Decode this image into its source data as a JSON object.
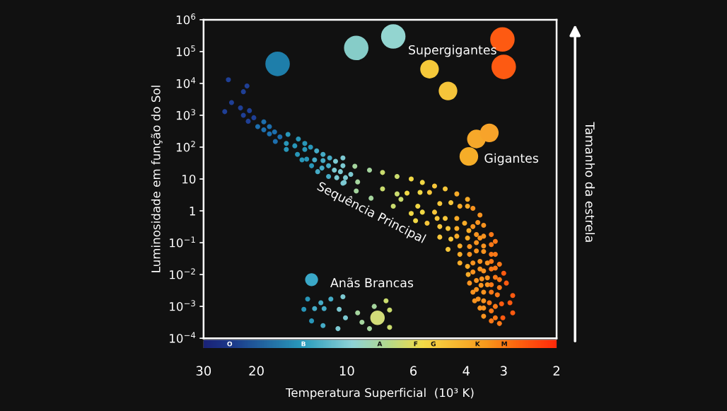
{
  "chart_data": {
    "type": "scatter",
    "xlabel": "Temperatura Superficial  (10³ K)",
    "ylabel": "Luminosidade em função do Sol",
    "log": "xy",
    "xlim": [
      30,
      2
    ],
    "ylim": [
      0.0001,
      1000000
    ],
    "xticks": [
      30,
      20,
      10,
      6,
      4,
      3,
      2
    ],
    "yticks": [
      {
        "value": 0.0001,
        "label": "10$^{−4}$"
      },
      {
        "value": 0.001,
        "label": "10$^{−3}$"
      },
      {
        "value": 0.01,
        "label": "10$^{−2}$"
      },
      {
        "value": 0.1,
        "label": "10$^{−1}$"
      },
      {
        "value": 1,
        "label": "1"
      },
      {
        "value": 10,
        "label": "10"
      },
      {
        "value": 100,
        "label": "10$^{2}$"
      },
      {
        "value": 1000,
        "label": "10$^{3}$"
      },
      {
        "value": 10000,
        "label": "10$^{4}$"
      },
      {
        "value": 100000,
        "label": "10$^{5}$"
      },
      {
        "value": 1000000,
        "label": "10$^{6}$"
      }
    ],
    "series": [
      {
        "colors": [
          "#1f3f95",
          "#1f3f95",
          "#1f3f95",
          "#1f3f95",
          "#1f3f95",
          "#1f3f95",
          "#1f3f95",
          "#1f3f95",
          "#1f3f95",
          "#1f3f95",
          "#1d6fae",
          "#1d6fae",
          "#1d6fae",
          "#1d6fae",
          "#1d6fae",
          "#1d6fae",
          "#1d6fae",
          "#2896b8",
          "#1d6fae",
          "#2896b8",
          "#2896b8",
          "#2896b8",
          "#2896b8",
          "#2896b8",
          "#2896b8",
          "#2896b8",
          "#45abc6",
          "#2896b8",
          "#2896b8",
          "#2896b8",
          "#45abc6",
          "#45abc6",
          "#45abc6",
          "#7cc9d2",
          "#7cc9d2",
          "#2896b8",
          "#45abc6",
          "#45abc6",
          "#7cc9d2",
          "#7cc9d2",
          "#45abc6",
          "#45abc6",
          "#7cc9d2",
          "#45abc6",
          "#7cc9d2",
          "#7cc9d2",
          "#a5d59e",
          "#7cc9d2",
          "#a5d59e",
          "#7cc9d2",
          "#a5d59e",
          "#cadc6e",
          "#cadc6e",
          "#f1d845",
          "#f1d845",
          "#f6c63a",
          "#f6c63a",
          "#f7ab28",
          "#f7ab28",
          "#f8931f",
          "#f8931f",
          "#f8931f",
          "#fb7817",
          "#fb7817",
          "#fb7817",
          "#fd5a10",
          "#fd5a10",
          "#fd5a10",
          "#fd5a10",
          "#fd5a10",
          "#fd5a10",
          "#fb7817",
          "#fb7817",
          "#f8931f",
          "#f8931f",
          "#f8931f",
          "#f8931f",
          "#f8931f",
          "#f7ab28",
          "#f7ab28",
          "#f7ab28",
          "#f7ab28",
          "#f6c63a",
          "#f6c63a",
          "#f6c63a",
          "#f1d845",
          "#f1d845",
          "#cadc6e",
          "#a5d59e",
          "#a5d59e",
          "#7cc9d2",
          "#cadc6e",
          "#cadc6e",
          "#f1d845",
          "#f1d845",
          "#f6c63a",
          "#f6c63a",
          "#f6c63a",
          "#f7ab28",
          "#f7ab28",
          "#cadc6e",
          "#f1d845",
          "#f1d845",
          "#f6c63a",
          "#f6c63a",
          "#f6c63a",
          "#f7ab28",
          "#f7ab28",
          "#f6c63a",
          "#f6c63a",
          "#f7ab28",
          "#f7ab28",
          "#f8931f",
          "#f8931f",
          "#f8931f",
          "#f8931f",
          "#f8931f",
          "#f7ab28",
          "#f6c63a",
          "#f7ab28",
          "#f8931f",
          "#f8931f",
          "#fb7817",
          "#f8931f",
          "#f8931f",
          "#f8931f",
          "#fb7817",
          "#fb7817",
          "#f8931f",
          "#f8931f",
          "#f8931f",
          "#f8931f",
          "#fb7817",
          "#f7ab28",
          "#f8931f",
          "#f8931f",
          "#f8931f",
          "#fb7817",
          "#fb7817",
          "#f8931f",
          "#f8931f",
          "#f8931f",
          "#fb7817",
          "#fb7817",
          "#f8931f",
          "#f8931f",
          "#fb7817",
          "#fb7817",
          "#f8931f",
          "#f8931f",
          "#fb7817",
          "#fb7817",
          "#f8931f",
          "#f8931f",
          "#fb7817",
          "#fb7817",
          "#fd5a10",
          "#f8931f",
          "#fb7817",
          "#fb7817"
        ],
        "x": [
          24.8,
          21.5,
          22.1,
          24.2,
          25.5,
          22.6,
          21.1,
          22.1,
          20.4,
          21.3,
          18.9,
          19.8,
          18.1,
          18.9,
          17.4,
          18.1,
          16.7,
          15.7,
          17.3,
          15.9,
          14.5,
          13.8,
          14.9,
          15.9,
          13.8,
          13.2,
          12.6,
          14.6,
          14.1,
          13.6,
          12.8,
          12.0,
          11.4,
          10.9,
          10.3,
          13.1,
          12.0,
          11.5,
          11.0,
          10.3,
          12.1,
          12.5,
          10.5,
          11.5,
          10.8,
          9.7,
          9.4,
          10.1,
          9.2,
          10.3,
          8.4,
          7.6,
          6.8,
          6.1,
          5.6,
          5.1,
          4.7,
          4.3,
          3.96,
          3.8,
          3.6,
          3.5,
          3.3,
          3.2,
          3.1,
          3.0,
          2.94,
          2.8,
          2.86,
          2.8,
          3.02,
          3.1,
          3.3,
          3.5,
          3.6,
          3.75,
          3.8,
          3.9,
          3.94,
          4.2,
          4.2,
          4.2,
          4.6,
          4.9,
          5.4,
          5.9,
          6.1,
          7.0,
          8.3,
          9.3,
          10.2,
          7.6,
          6.8,
          6.3,
          5.7,
          5.3,
          4.9,
          4.5,
          4.2,
          3.96,
          6.6,
          5.8,
          5.6,
          5.1,
          5.0,
          4.7,
          4.3,
          4.05,
          4.9,
          4.6,
          4.3,
          3.92,
          3.8,
          3.66,
          3.7,
          3.6,
          3.5,
          3.96,
          4.5,
          4.3,
          3.7,
          3.5,
          3.3,
          3.9,
          3.7,
          3.5,
          3.3,
          3.2,
          3.9,
          3.8,
          3.6,
          3.4,
          3.3,
          3.96,
          3.8,
          3.6,
          3.5,
          3.3,
          3.2,
          3.7,
          3.55,
          3.4,
          3.2,
          3.1,
          3.57,
          3.4,
          3.3,
          3.1,
          3.7,
          3.5,
          3.3,
          3.15,
          3.65,
          3.5,
          3.35,
          3.2,
          3.05,
          3.5,
          3.3,
          3.2
        ],
        "values": [
          13000,
          8300,
          5500,
          2500,
          1300,
          1700,
          1400,
          1000,
          840,
          650,
          620,
          440,
          440,
          350,
          300,
          260,
          210,
          250,
          150,
          130,
          180,
          130,
          110,
          85,
          85,
          100,
          76,
          59,
          40,
          42,
          40,
          59,
          46,
          36,
          46,
          26,
          38,
          26,
          19,
          26,
          22,
          17,
          17,
          12,
          11,
          14,
          25,
          11,
          8.1,
          7.4,
          19,
          16,
          12,
          10,
          7.8,
          6.0,
          4.9,
          3.4,
          2.3,
          1.2,
          0.74,
          0.35,
          0.18,
          0.11,
          0.021,
          0.011,
          0.0054,
          0.0022,
          0.0013,
          0.00063,
          0.00044,
          0.00029,
          0.00035,
          0.00049,
          0.00089,
          0.0015,
          0.0028,
          0.0054,
          0.01,
          0.023,
          0.043,
          0.079,
          0.062,
          0.15,
          0.41,
          0.49,
          0.83,
          1.4,
          2.5,
          4.2,
          7.8,
          4.9,
          3.4,
          3.6,
          3.8,
          3.8,
          1.7,
          1.8,
          1.4,
          1.4,
          2.3,
          1.4,
          0.91,
          0.91,
          0.58,
          0.58,
          0.58,
          0.41,
          0.32,
          0.28,
          0.28,
          0.24,
          0.32,
          0.43,
          0.18,
          0.14,
          0.16,
          0.14,
          0.13,
          0.16,
          0.1,
          0.079,
          0.087,
          0.076,
          0.055,
          0.053,
          0.043,
          0.043,
          0.043,
          0.023,
          0.026,
          0.023,
          0.026,
          0.018,
          0.012,
          0.015,
          0.013,
          0.015,
          0.016,
          0.0065,
          0.0073,
          0.0079,
          0.0082,
          0.0069,
          0.0046,
          0.0048,
          0.0048,
          0.0039,
          0.0034,
          0.0028,
          0.0028,
          0.0023,
          0.0017,
          0.0015,
          0.0013,
          0.001,
          0.0012,
          0.00089,
          0.00072,
          0.00044
        ]
      },
      {
        "colors": [
          "#2896b8",
          "#2896b8",
          "#45abc6",
          "#45abc6",
          "#45abc6",
          "#45abc6",
          "#7cc9d2",
          "#7cc9d2",
          "#2896b8",
          "#45abc6",
          "#7cc9d2",
          "#7cc9d2",
          "#a5d59e",
          "#a5d59e",
          "#cadc6e",
          "#cadc6e",
          "#a5d59e",
          "#a5d59e",
          "#cadc6e"
        ],
        "x": [
          13.5,
          13.9,
          12.8,
          12.2,
          11.9,
          11.3,
          10.3,
          10.6,
          13.1,
          12.0,
          10.7,
          10.1,
          9.2,
          8.1,
          7.4,
          7.2,
          8.9,
          8.4,
          7.2
        ],
        "values": [
          0.0017,
          0.00081,
          0.00085,
          0.0013,
          0.00085,
          0.0017,
          0.002,
          0.00081,
          0.00035,
          0.00025,
          0.0002,
          0.00044,
          0.00063,
          0.001,
          0.0015,
          0.00077,
          0.00032,
          0.0002,
          0.00022
        ]
      },
      {
        "type": "bubble",
        "x": [
          13.1,
          7.9
        ],
        "values": [
          0.0069,
          0.00044
        ],
        "sizes": [
          0.28,
          0.35
        ],
        "colors": [
          "#3aa8c8",
          "#d2dc78"
        ]
      },
      {
        "type": "bubble",
        "x": [
          3.92,
          3.7,
          3.35
        ],
        "values": [
          51,
          180,
          280
        ],
        "sizes": [
          0.58,
          0.58,
          0.58
        ],
        "colors": [
          "#f5ad28",
          "#f6a82a",
          "#f7a32a"
        ]
      },
      {
        "type": "bubble",
        "x": [
          17.0,
          9.3,
          7.0,
          5.3,
          4.6,
          3.03,
          3.0
        ],
        "values": [
          41000,
          130000,
          300000,
          28000,
          5800,
          240000,
          33000
        ],
        "sizes": [
          1,
          1,
          1,
          0.58,
          0.58,
          1,
          1
        ],
        "colors": [
          "#1e7eaa",
          "#86ccc8",
          "#93d5d0",
          "#f5c83a",
          "#f5c43a",
          "#fd5a12",
          "#fd5a12"
        ]
      }
    ],
    "annotations": [
      "Supergigantes",
      "Gigantes",
      "Sequência Principal",
      "Anãs Brancas",
      "O",
      "B",
      "A",
      "F",
      "G",
      "K",
      "M",
      "Tamanho da estrela"
    ]
  }
}
